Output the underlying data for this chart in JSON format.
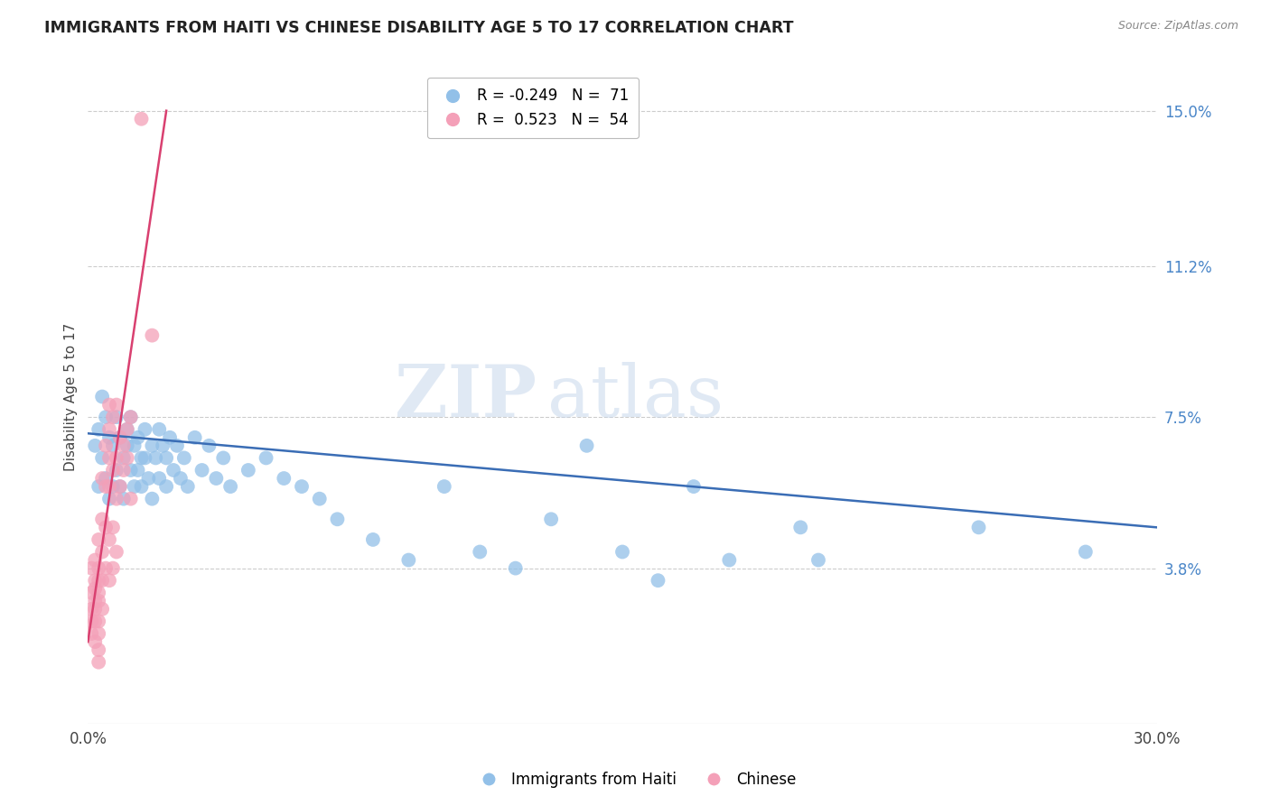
{
  "title": "IMMIGRANTS FROM HAITI VS CHINESE DISABILITY AGE 5 TO 17 CORRELATION CHART",
  "source": "Source: ZipAtlas.com",
  "ylabel": "Disability Age 5 to 17",
  "x_min": 0.0,
  "x_max": 0.3,
  "y_min": 0.0,
  "y_max": 0.16,
  "x_ticks": [
    0.0,
    0.05,
    0.1,
    0.15,
    0.2,
    0.25,
    0.3
  ],
  "x_tick_labels": [
    "0.0%",
    "",
    "",
    "",
    "",
    "",
    "30.0%"
  ],
  "y_ticks_right": [
    0.038,
    0.075,
    0.112,
    0.15
  ],
  "y_tick_labels_right": [
    "3.8%",
    "7.5%",
    "11.2%",
    "15.0%"
  ],
  "haiti_color": "#92c0e8",
  "chinese_color": "#f4a0b8",
  "haiti_line_color": "#3a6db5",
  "chinese_line_color": "#d94070",
  "watermark_zip": "ZIP",
  "watermark_atlas": "atlas",
  "haiti_R": "R = -0.249",
  "haiti_N": "N =  71",
  "chinese_R": "R =  0.523",
  "chinese_N": "N =  54",
  "legend_label_haiti": "Immigrants from Haiti",
  "legend_label_chinese": "Chinese",
  "haiti_points": [
    [
      0.002,
      0.068
    ],
    [
      0.003,
      0.072
    ],
    [
      0.003,
      0.058
    ],
    [
      0.004,
      0.08
    ],
    [
      0.004,
      0.065
    ],
    [
      0.005,
      0.06
    ],
    [
      0.005,
      0.075
    ],
    [
      0.006,
      0.055
    ],
    [
      0.006,
      0.07
    ],
    [
      0.007,
      0.068
    ],
    [
      0.007,
      0.058
    ],
    [
      0.008,
      0.075
    ],
    [
      0.008,
      0.062
    ],
    [
      0.009,
      0.07
    ],
    [
      0.009,
      0.058
    ],
    [
      0.01,
      0.065
    ],
    [
      0.01,
      0.055
    ],
    [
      0.011,
      0.068
    ],
    [
      0.011,
      0.072
    ],
    [
      0.012,
      0.062
    ],
    [
      0.012,
      0.075
    ],
    [
      0.013,
      0.068
    ],
    [
      0.013,
      0.058
    ],
    [
      0.014,
      0.07
    ],
    [
      0.014,
      0.062
    ],
    [
      0.015,
      0.065
    ],
    [
      0.015,
      0.058
    ],
    [
      0.016,
      0.072
    ],
    [
      0.016,
      0.065
    ],
    [
      0.017,
      0.06
    ],
    [
      0.018,
      0.068
    ],
    [
      0.018,
      0.055
    ],
    [
      0.019,
      0.065
    ],
    [
      0.02,
      0.072
    ],
    [
      0.02,
      0.06
    ],
    [
      0.021,
      0.068
    ],
    [
      0.022,
      0.058
    ],
    [
      0.022,
      0.065
    ],
    [
      0.023,
      0.07
    ],
    [
      0.024,
      0.062
    ],
    [
      0.025,
      0.068
    ],
    [
      0.026,
      0.06
    ],
    [
      0.027,
      0.065
    ],
    [
      0.028,
      0.058
    ],
    [
      0.03,
      0.07
    ],
    [
      0.032,
      0.062
    ],
    [
      0.034,
      0.068
    ],
    [
      0.036,
      0.06
    ],
    [
      0.038,
      0.065
    ],
    [
      0.04,
      0.058
    ],
    [
      0.045,
      0.062
    ],
    [
      0.05,
      0.065
    ],
    [
      0.055,
      0.06
    ],
    [
      0.06,
      0.058
    ],
    [
      0.065,
      0.055
    ],
    [
      0.07,
      0.05
    ],
    [
      0.08,
      0.045
    ],
    [
      0.09,
      0.04
    ],
    [
      0.1,
      0.058
    ],
    [
      0.11,
      0.042
    ],
    [
      0.12,
      0.038
    ],
    [
      0.13,
      0.05
    ],
    [
      0.14,
      0.068
    ],
    [
      0.15,
      0.042
    ],
    [
      0.16,
      0.035
    ],
    [
      0.17,
      0.058
    ],
    [
      0.18,
      0.04
    ],
    [
      0.2,
      0.048
    ],
    [
      0.205,
      0.04
    ],
    [
      0.25,
      0.048
    ],
    [
      0.28,
      0.042
    ]
  ],
  "chinese_points": [
    [
      0.001,
      0.025
    ],
    [
      0.001,
      0.032
    ],
    [
      0.001,
      0.022
    ],
    [
      0.001,
      0.028
    ],
    [
      0.001,
      0.038
    ],
    [
      0.002,
      0.02
    ],
    [
      0.002,
      0.03
    ],
    [
      0.002,
      0.035
    ],
    [
      0.002,
      0.025
    ],
    [
      0.002,
      0.04
    ],
    [
      0.002,
      0.028
    ],
    [
      0.002,
      0.033
    ],
    [
      0.003,
      0.032
    ],
    [
      0.003,
      0.038
    ],
    [
      0.003,
      0.045
    ],
    [
      0.003,
      0.025
    ],
    [
      0.003,
      0.022
    ],
    [
      0.003,
      0.03
    ],
    [
      0.003,
      0.035
    ],
    [
      0.003,
      0.018
    ],
    [
      0.003,
      0.015
    ],
    [
      0.004,
      0.06
    ],
    [
      0.004,
      0.05
    ],
    [
      0.004,
      0.042
    ],
    [
      0.004,
      0.035
    ],
    [
      0.004,
      0.028
    ],
    [
      0.005,
      0.068
    ],
    [
      0.005,
      0.058
    ],
    [
      0.005,
      0.048
    ],
    [
      0.005,
      0.038
    ],
    [
      0.006,
      0.072
    ],
    [
      0.006,
      0.065
    ],
    [
      0.006,
      0.078
    ],
    [
      0.006,
      0.058
    ],
    [
      0.006,
      0.045
    ],
    [
      0.006,
      0.035
    ],
    [
      0.007,
      0.062
    ],
    [
      0.007,
      0.075
    ],
    [
      0.007,
      0.048
    ],
    [
      0.007,
      0.038
    ],
    [
      0.008,
      0.065
    ],
    [
      0.008,
      0.078
    ],
    [
      0.008,
      0.055
    ],
    [
      0.008,
      0.042
    ],
    [
      0.009,
      0.07
    ],
    [
      0.009,
      0.058
    ],
    [
      0.01,
      0.068
    ],
    [
      0.01,
      0.062
    ],
    [
      0.011,
      0.065
    ],
    [
      0.011,
      0.072
    ],
    [
      0.012,
      0.075
    ],
    [
      0.012,
      0.055
    ],
    [
      0.015,
      0.148
    ],
    [
      0.018,
      0.095
    ]
  ],
  "haiti_trend_x": [
    0.0,
    0.3
  ],
  "haiti_trend_y": [
    0.071,
    0.048
  ],
  "chinese_trend_x": [
    0.0,
    0.022
  ],
  "chinese_trend_y": [
    0.02,
    0.15
  ]
}
